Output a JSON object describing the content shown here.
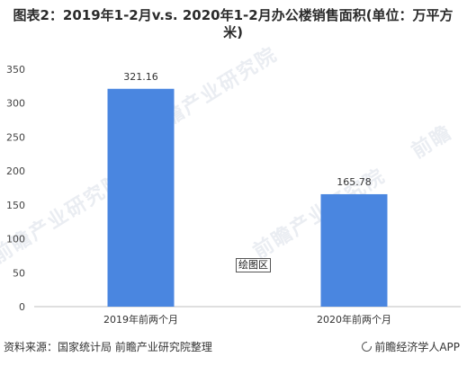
{
  "header": {
    "title": "图表2：2019年1-2月v.s. 2020年1-2月办公楼销售面积(单位：万平方米)"
  },
  "chart_data": {
    "type": "bar",
    "categories": [
      "2019年前两个月",
      "2020年前两个月"
    ],
    "values": [
      321.16,
      165.78
    ],
    "value_labels": [
      "321.16",
      "165.78"
    ],
    "ylim": [
      0,
      350
    ],
    "yticks": [
      "0",
      "50",
      "100",
      "150",
      "200",
      "250",
      "300",
      "350"
    ],
    "grid": false,
    "bar_color": "#4a86e0",
    "xlabel": "",
    "ylabel": ""
  },
  "plot_area_label": "绘图区",
  "watermarks": [
    "前瞻产业研究院",
    "前瞻产业研究院",
    "前瞻产业研究院",
    "前瞻"
  ],
  "footer": {
    "source": "资料来源：国家统计局 前瞻产业研究院整理",
    "brand": "前瞻经济学人APP",
    "brand_icon": "qianzhan-logo-icon"
  }
}
